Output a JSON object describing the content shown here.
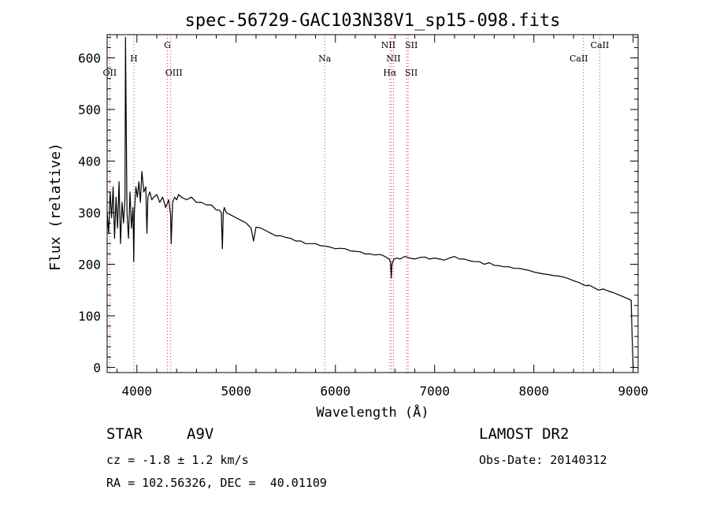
{
  "chart_data": {
    "type": "line",
    "title": "spec-56729-GAC103N38V1_sp15-098.fits",
    "xlabel": "Wavelength (Å)",
    "ylabel": "Flux (relative)",
    "xlim": [
      3700,
      9050
    ],
    "ylim": [
      -10,
      645
    ],
    "xticks": [
      4000,
      5000,
      6000,
      7000,
      8000,
      9000
    ],
    "yticks": [
      0,
      100,
      200,
      300,
      400,
      500,
      600
    ],
    "grid": false,
    "line_color": "#000000",
    "marker_color": "#e03030",
    "series": [
      {
        "x": [
          3700,
          3715,
          3730,
          3745,
          3760,
          3775,
          3790,
          3805,
          3820,
          3835,
          3850,
          3865,
          3880,
          3885,
          3900,
          3915,
          3930,
          3945,
          3960,
          3968,
          3975,
          3990,
          4005,
          4020,
          4035,
          4050,
          4070,
          4090,
          4101,
          4110,
          4130,
          4150,
          4170,
          4200,
          4230,
          4260,
          4290,
          4320,
          4340,
          4345,
          4360,
          4380,
          4400,
          4420,
          4450,
          4500,
          4550,
          4600,
          4650,
          4700,
          4750,
          4800,
          4830,
          4850,
          4861,
          4870,
          4880,
          4900,
          4950,
          5000,
          5050,
          5100,
          5150,
          5175,
          5200,
          5250,
          5300,
          5350,
          5400,
          5450,
          5500,
          5550,
          5600,
          5650,
          5700,
          5750,
          5800,
          5850,
          5900,
          5950,
          6000,
          6050,
          6100,
          6150,
          6200,
          6250,
          6300,
          6350,
          6400,
          6450,
          6500,
          6540,
          6555,
          6563,
          6570,
          6590,
          6620,
          6650,
          6700,
          6750,
          6800,
          6850,
          6900,
          6950,
          7000,
          7050,
          7100,
          7150,
          7200,
          7250,
          7300,
          7350,
          7400,
          7450,
          7500,
          7550,
          7600,
          7650,
          7700,
          7750,
          7800,
          7850,
          7900,
          7950,
          8000,
          8050,
          8100,
          8150,
          8200,
          8250,
          8300,
          8350,
          8400,
          8450,
          8500,
          8542,
          8550,
          8600,
          8650,
          8700,
          8750,
          8800,
          8850,
          8900,
          8950,
          8980,
          8990,
          9000
        ],
        "y": [
          300,
          260,
          340,
          290,
          350,
          250,
          330,
          270,
          360,
          240,
          320,
          280,
          330,
          640,
          300,
          250,
          340,
          270,
          310,
          205,
          300,
          350,
          330,
          360,
          320,
          380,
          340,
          350,
          260,
          330,
          340,
          325,
          330,
          335,
          320,
          330,
          310,
          325,
          295,
          240,
          320,
          330,
          325,
          335,
          330,
          325,
          330,
          320,
          320,
          315,
          315,
          305,
          305,
          300,
          230,
          300,
          310,
          300,
          295,
          290,
          285,
          280,
          270,
          245,
          272,
          270,
          265,
          260,
          255,
          255,
          252,
          250,
          245,
          245,
          240,
          240,
          240,
          236,
          235,
          233,
          230,
          231,
          230,
          226,
          225,
          224,
          220,
          220,
          218,
          219,
          215,
          210,
          205,
          173,
          200,
          210,
          212,
          210,
          215,
          212,
          210,
          213,
          214,
          210,
          212,
          210,
          208,
          212,
          215,
          210,
          210,
          207,
          205,
          205,
          200,
          203,
          198,
          197,
          195,
          195,
          192,
          192,
          190,
          188,
          185,
          183,
          181,
          180,
          178,
          177,
          175,
          172,
          168,
          165,
          160,
          158,
          160,
          155,
          150,
          152,
          148,
          145,
          141,
          137,
          133,
          130,
          60,
          0
        ],
        "color": "#000000"
      }
    ],
    "lines": [
      {
        "wl": 3727,
        "label": "OII"
      },
      {
        "wl": 3969,
        "label": "H"
      },
      {
        "wl": 4307,
        "label": "G"
      },
      {
        "wl": 4341,
        "label": "OIII"
      },
      {
        "wl": 5893,
        "label": "Na"
      },
      {
        "wl": 6549,
        "label": "NII"
      },
      {
        "wl": 6565,
        "label": "Hα"
      },
      {
        "wl": 6585,
        "label": "NII"
      },
      {
        "wl": 6718,
        "label": "SII"
      },
      {
        "wl": 6733,
        "label": "SII"
      },
      {
        "wl": 8500,
        "label": "CaII"
      },
      {
        "wl": 8664,
        "label": "CaII"
      }
    ]
  },
  "info": {
    "object_type": "STAR",
    "subclass": "A9V",
    "survey": "LAMOST DR2",
    "cz": "cz = -1.8 ± 1.2 km/s",
    "obs_date": "Obs-Date: 20140312",
    "coords": "RA = 102.56326, DEC =  40.01109"
  }
}
